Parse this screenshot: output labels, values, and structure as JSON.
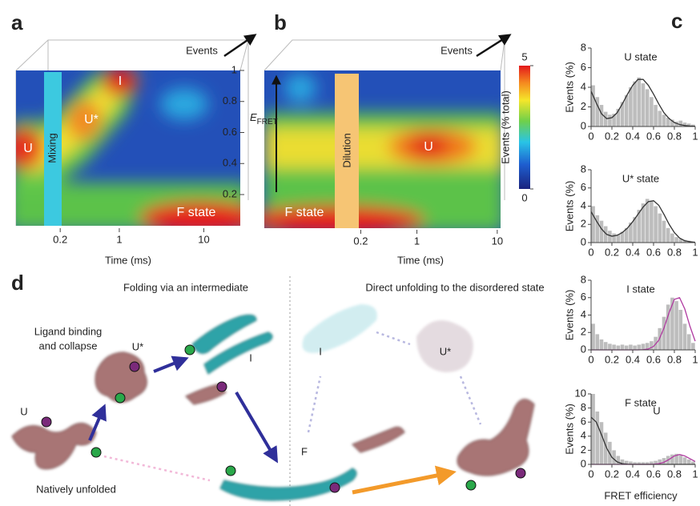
{
  "panels": {
    "a": {
      "label": "a",
      "events": "Events",
      "bar_label": "Mixing",
      "states": [
        "U",
        "U*",
        "I",
        "F state"
      ],
      "xlabel": "Time (ms)",
      "log_x": true,
      "xlim": [
        0.06,
        27
      ],
      "xticks": [
        0.2,
        1,
        10
      ]
    },
    "b": {
      "label": "b",
      "events": "Events",
      "bar_label": "Dilution",
      "states": [
        "U",
        "F state"
      ],
      "xlabel": "Time (ms)",
      "log_x": true,
      "xlim": [
        0.0126,
        11
      ],
      "xticks": [
        0.2,
        1,
        10
      ],
      "efret": {
        "symbol": "E",
        "subscript": "FRET",
        "lim": [
          0.2,
          1
        ],
        "ticks": [
          1,
          0.8,
          0.6,
          0.4,
          0.2
        ]
      },
      "colorbar": {
        "label": "Events (% total)",
        "lim": [
          0,
          5
        ],
        "ticks": [
          5,
          0
        ]
      }
    },
    "c": {
      "label": "c",
      "xlabel": "FRET efficiency"
    },
    "d": {
      "label": "d",
      "left_title": "Folding via an intermediate",
      "right_title": "Direct unfolding to the disordered state",
      "labels": [
        "Ligand binding",
        "and collapse",
        "U*",
        "I",
        "U",
        "Natively unfolded",
        "I",
        "U*",
        "F",
        "U"
      ]
    }
  },
  "chart_data": [
    {
      "type": "histogram",
      "title": "U state",
      "ylabel": "Events (%)",
      "color": "#bdbdbd",
      "bins": [
        0,
        0.04,
        0.08,
        0.12,
        0.16,
        0.2,
        0.24,
        0.28,
        0.32,
        0.36,
        0.4,
        0.44,
        0.48,
        0.52,
        0.56,
        0.6,
        0.64,
        0.68,
        0.72,
        0.76,
        0.8,
        0.84,
        0.88,
        0.92,
        0.96,
        1
      ],
      "values": [
        4.2,
        3,
        2.2,
        1.5,
        1.2,
        1.3,
        1.8,
        2.5,
        3.2,
        4,
        4.6,
        5,
        4.4,
        3.8,
        3,
        2.2,
        1.6,
        1.2,
        0.9,
        0.7,
        0.5,
        0.6,
        0.4,
        0.3,
        0.2
      ],
      "fit_x": [
        0,
        0.05,
        0.1,
        0.15,
        0.2,
        0.25,
        0.3,
        0.35,
        0.4,
        0.45,
        0.5,
        0.55,
        0.6,
        0.65,
        0.7,
        0.75,
        0.8,
        0.85,
        0.9,
        0.95,
        1
      ],
      "fits": [
        {
          "color": "#333333",
          "values": [
            3.6,
            2.4,
            1.3,
            0.8,
            0.9,
            1.4,
            2.3,
            3.3,
            4.2,
            4.8,
            4.8,
            4.2,
            3.3,
            2.3,
            1.4,
            0.8,
            0.4,
            0.2,
            0.1,
            0.05,
            0.02
          ]
        }
      ],
      "xlim": [
        0,
        1
      ],
      "ylim": [
        0,
        8
      ],
      "xticks": [
        0,
        0.2,
        0.4,
        0.6,
        0.8,
        1
      ],
      "yticks": [
        0,
        2,
        4,
        6,
        8
      ]
    },
    {
      "type": "histogram",
      "title": "U* state",
      "ylabel": "Events (%)",
      "color": "#bdbdbd",
      "bins": [
        0,
        0.04,
        0.08,
        0.12,
        0.16,
        0.2,
        0.24,
        0.28,
        0.32,
        0.36,
        0.4,
        0.44,
        0.48,
        0.52,
        0.56,
        0.6,
        0.64,
        0.68,
        0.72,
        0.76,
        0.8,
        0.84,
        0.88,
        0.92,
        0.96,
        1
      ],
      "values": [
        4,
        3,
        2.4,
        1.8,
        1.3,
        1,
        0.9,
        1.2,
        1.6,
        2.2,
        2.8,
        3.6,
        4.3,
        4.8,
        4.6,
        4,
        3.2,
        2.4,
        1.6,
        1,
        0.6,
        0.4,
        0.3,
        0.2,
        0.1
      ],
      "fit_x": [
        0,
        0.05,
        0.1,
        0.15,
        0.2,
        0.25,
        0.3,
        0.35,
        0.4,
        0.45,
        0.5,
        0.55,
        0.6,
        0.65,
        0.7,
        0.75,
        0.8,
        0.85,
        0.9,
        0.95,
        1
      ],
      "fits": [
        {
          "color": "#333333",
          "values": [
            3.4,
            2.4,
            1.5,
            0.9,
            0.7,
            0.8,
            1.1,
            1.6,
            2.3,
            3.1,
            3.9,
            4.5,
            4.6,
            4.1,
            3.1,
            2,
            1.1,
            0.5,
            0.2,
            0.1,
            0.03
          ]
        }
      ],
      "xlim": [
        0,
        1
      ],
      "ylim": [
        0,
        8
      ],
      "xticks": [
        0,
        0.2,
        0.4,
        0.6,
        0.8,
        1
      ],
      "yticks": [
        0,
        2,
        4,
        6,
        8
      ]
    },
    {
      "type": "histogram",
      "title": "I state",
      "ylabel": "Events (%)",
      "color": "#bdbdbd",
      "bins": [
        0,
        0.04,
        0.08,
        0.12,
        0.16,
        0.2,
        0.24,
        0.28,
        0.32,
        0.36,
        0.4,
        0.44,
        0.48,
        0.52,
        0.56,
        0.6,
        0.64,
        0.68,
        0.72,
        0.76,
        0.8,
        0.84,
        0.88,
        0.92,
        0.96,
        1
      ],
      "values": [
        3,
        1.8,
        1.2,
        0.9,
        0.7,
        0.6,
        0.5,
        0.6,
        0.5,
        0.6,
        0.5,
        0.6,
        0.7,
        0.8,
        1,
        1.5,
        2.5,
        3.8,
        5.2,
        6,
        5.6,
        4.6,
        3,
        1.8,
        0.8
      ],
      "fit_x": [
        0,
        0.05,
        0.1,
        0.15,
        0.2,
        0.25,
        0.3,
        0.35,
        0.4,
        0.45,
        0.5,
        0.55,
        0.6,
        0.65,
        0.7,
        0.75,
        0.8,
        0.85,
        0.9,
        0.95,
        1
      ],
      "fits": [
        {
          "color": "#b03aa0",
          "values": [
            0,
            0,
            0,
            0,
            0,
            0,
            0,
            0,
            0,
            0,
            0.02,
            0.1,
            0.4,
            1.1,
            2.5,
            4.3,
            5.8,
            6,
            4.7,
            2.7,
            1
          ]
        }
      ],
      "xlim": [
        0,
        1
      ],
      "ylim": [
        0,
        8
      ],
      "xticks": [
        0,
        0.2,
        0.4,
        0.6,
        0.8,
        1
      ],
      "yticks": [
        0,
        2,
        4,
        6,
        8
      ]
    },
    {
      "type": "histogram",
      "title": "F state",
      "ylabel": "Events (%)",
      "color": "#bdbdbd",
      "bins": [
        0,
        0.04,
        0.08,
        0.12,
        0.16,
        0.2,
        0.24,
        0.28,
        0.32,
        0.36,
        0.4,
        0.44,
        0.48,
        0.52,
        0.56,
        0.6,
        0.64,
        0.68,
        0.72,
        0.76,
        0.8,
        0.84,
        0.88,
        0.92,
        0.96,
        1
      ],
      "values": [
        10,
        7.5,
        6,
        4.5,
        3.2,
        2,
        1.2,
        0.7,
        0.5,
        0.4,
        0.3,
        0.3,
        0.3,
        0.3,
        0.4,
        0.5,
        0.7,
        0.9,
        1.2,
        1.4,
        1.5,
        1.3,
        1,
        0.7,
        0.4
      ],
      "fit_x": [
        0,
        0.05,
        0.1,
        0.15,
        0.2,
        0.25,
        0.3,
        0.35,
        0.4,
        0.45,
        0.5,
        0.55,
        0.6,
        0.65,
        0.7,
        0.75,
        0.8,
        0.85,
        0.9,
        0.95,
        1
      ],
      "fits": [
        {
          "color": "#333333",
          "values": [
            6.7,
            6,
            4.2,
            2.3,
            1,
            0.35,
            0.1,
            0.02,
            0,
            0,
            0,
            0,
            0,
            0,
            0,
            0,
            0,
            0,
            0,
            0,
            0
          ]
        },
        {
          "color": "#b03aa0",
          "values": [
            0,
            0,
            0,
            0,
            0,
            0,
            0,
            0,
            0,
            0,
            0,
            0,
            0.02,
            0.1,
            0.3,
            0.7,
            1.2,
            1.4,
            1.2,
            0.8,
            0.4
          ]
        }
      ],
      "xlim": [
        0,
        1
      ],
      "ylim": [
        0,
        10
      ],
      "xticks": [
        0,
        0.2,
        0.4,
        0.6,
        0.8,
        1
      ],
      "yticks": [
        0,
        2,
        4,
        6,
        8,
        10
      ]
    }
  ]
}
